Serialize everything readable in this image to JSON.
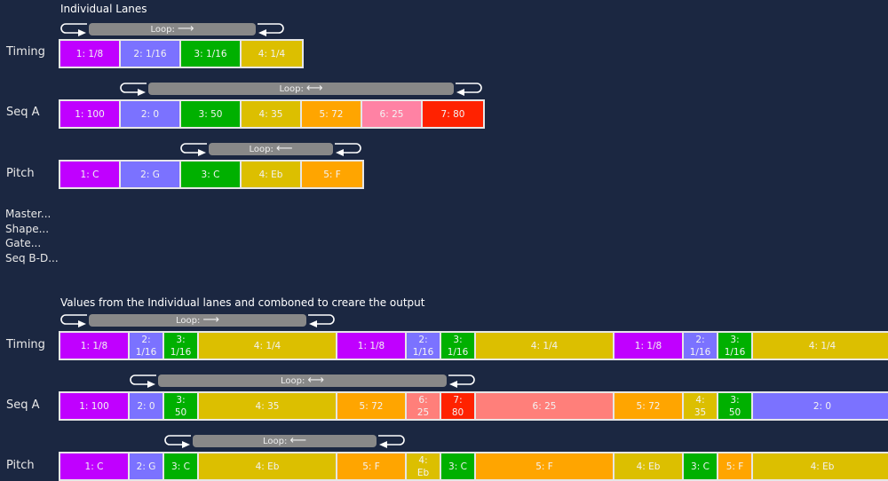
{
  "individual": {
    "title": "Individual Lanes",
    "lanes": [
      {
        "label": "Timing",
        "loop_label": "Loop:",
        "loop_direction": "forward-arrow-icon",
        "cells": [
          {
            "text": "1: 1/8",
            "color": "#c000ff"
          },
          {
            "text": "2: 1/16",
            "color": "#7b72ff"
          },
          {
            "text": "3: 1/16",
            "color": "#00b000"
          },
          {
            "text": "4: 1/4",
            "color": "#dcbf00"
          }
        ]
      },
      {
        "label": "Seq A",
        "loop_label": "Loop:",
        "loop_direction": "pingpong-arrow-icon",
        "cells": [
          {
            "text": "1: 100",
            "color": "#c000ff"
          },
          {
            "text": "2: 0",
            "color": "#7b72ff"
          },
          {
            "text": "3: 50",
            "color": "#00b000"
          },
          {
            "text": "4: 35",
            "color": "#dcbf00"
          },
          {
            "text": "5: 72",
            "color": "#ffa500"
          },
          {
            "text": "6: 25",
            "color": "#ff82a4"
          },
          {
            "text": "7: 80",
            "color": "#ff2200"
          }
        ]
      },
      {
        "label": "Pitch",
        "loop_label": "Loop:",
        "loop_direction": "reverse-arrow-icon",
        "cells": [
          {
            "text": "1: C",
            "color": "#c000ff"
          },
          {
            "text": "2: G",
            "color": "#7b72ff"
          },
          {
            "text": "3: C",
            "color": "#00b000"
          },
          {
            "text": "4: Eb",
            "color": "#dcbf00"
          },
          {
            "text": "5: F",
            "color": "#ffa500"
          }
        ]
      }
    ],
    "more_lanes": [
      "Master...",
      "Shape...",
      "Gate...",
      "Seq B-D..."
    ]
  },
  "combined": {
    "title": "Values from the Individual lanes and comboned to creare the output",
    "timing_steps": [
      "1/8",
      "1/16",
      "1/16",
      "1/4",
      "1/8",
      "1/16",
      "1/16",
      "1/4",
      "1/8",
      "1/16",
      "1/16",
      "1/4"
    ],
    "lanes": [
      {
        "label": "Timing",
        "loop_label": "Loop:",
        "loop_direction": "forward-arrow-icon",
        "cells": [
          {
            "text": "1: 1/8",
            "color": "#c000ff"
          },
          {
            "text": "2: 1/16",
            "color": "#7b72ff"
          },
          {
            "text": "3: 1/16",
            "color": "#00b000"
          },
          {
            "text": "4: 1/4",
            "color": "#dcbf00"
          },
          {
            "text": "1: 1/8",
            "color": "#c000ff"
          },
          {
            "text": "2: 1/16",
            "color": "#7b72ff"
          },
          {
            "text": "3: 1/16",
            "color": "#00b000"
          },
          {
            "text": "4: 1/4",
            "color": "#dcbf00"
          },
          {
            "text": "1: 1/8",
            "color": "#c000ff"
          },
          {
            "text": "2: 1/16",
            "color": "#7b72ff"
          },
          {
            "text": "3: 1/16",
            "color": "#00b000"
          },
          {
            "text": "4: 1/4",
            "color": "#dcbf00"
          }
        ]
      },
      {
        "label": "Seq A",
        "loop_label": "Loop:",
        "loop_direction": "pingpong-arrow-icon",
        "cells": [
          {
            "text": "1: 100",
            "color": "#c000ff"
          },
          {
            "text": "2: 0",
            "color": "#7b72ff"
          },
          {
            "text": "3: 50",
            "color": "#00b000"
          },
          {
            "text": "4: 35",
            "color": "#dcbf00"
          },
          {
            "text": "5: 72",
            "color": "#ffa500"
          },
          {
            "text": "6: 25",
            "color": "#ff7f7a"
          },
          {
            "text": "7: 80",
            "color": "#ff2200"
          },
          {
            "text": "6: 25",
            "color": "#ff7f7a"
          },
          {
            "text": "5: 72",
            "color": "#ffa500"
          },
          {
            "text": "4: 35",
            "color": "#dcbf00"
          },
          {
            "text": "3: 50",
            "color": "#00b000"
          },
          {
            "text": "2: 0",
            "color": "#7b72ff"
          }
        ]
      },
      {
        "label": "Pitch",
        "loop_label": "Loop:",
        "loop_direction": "reverse-arrow-icon",
        "cells": [
          {
            "text": "1: C",
            "color": "#c000ff"
          },
          {
            "text": "2: G",
            "color": "#7b72ff"
          },
          {
            "text": "3: C",
            "color": "#00b000"
          },
          {
            "text": "4: Eb",
            "color": "#dcbf00"
          },
          {
            "text": "5: F",
            "color": "#ffa500"
          },
          {
            "text": "4: Eb",
            "color": "#dcbf00"
          },
          {
            "text": "3: C",
            "color": "#00b000"
          },
          {
            "text": "5: F",
            "color": "#ffa500"
          },
          {
            "text": "4: Eb",
            "color": "#dcbf00"
          },
          {
            "text": "3: C",
            "color": "#00b000"
          },
          {
            "text": "5: F",
            "color": "#ffa500"
          },
          {
            "text": "4: Eb",
            "color": "#dcbf00"
          }
        ]
      }
    ]
  }
}
